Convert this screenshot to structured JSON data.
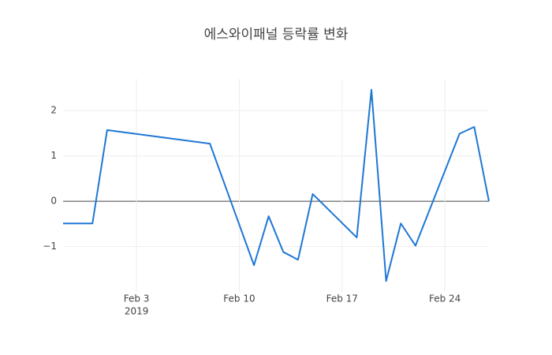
{
  "chart_data": {
    "type": "line",
    "title": "에스와이패널 등락률 변화",
    "x": [
      "2019-01-29",
      "2019-01-31",
      "2019-02-01",
      "2019-02-08",
      "2019-02-11",
      "2019-02-12",
      "2019-02-13",
      "2019-02-14",
      "2019-02-15",
      "2019-02-18",
      "2019-02-19",
      "2019-02-20",
      "2019-02-21",
      "2019-02-22",
      "2019-02-25",
      "2019-02-26",
      "2019-02-27"
    ],
    "series": [
      {
        "color": "#1f77d4",
        "values": [
          -0.49,
          -0.49,
          1.57,
          1.27,
          -1.41,
          -0.33,
          -1.12,
          -1.29,
          0.16,
          -0.8,
          2.46,
          -1.76,
          -0.49,
          -0.98,
          1.49,
          1.64,
          0.0
        ]
      }
    ],
    "xlim": [
      "2019-01-29",
      "2019-02-27"
    ],
    "xticks": [
      {
        "value": "2019-02-03",
        "label": "Feb 3"
      },
      {
        "value": "2019-02-10",
        "label": "Feb 10"
      },
      {
        "value": "2019-02-17",
        "label": "Feb 17"
      },
      {
        "value": "2019-02-24",
        "label": "Feb 24"
      }
    ],
    "xtick_year": "2019",
    "ylim": [
      -2.0,
      2.7
    ],
    "yticks": [
      {
        "value": -1,
        "label": "−1"
      },
      0,
      1,
      2
    ],
    "grid": true
  }
}
